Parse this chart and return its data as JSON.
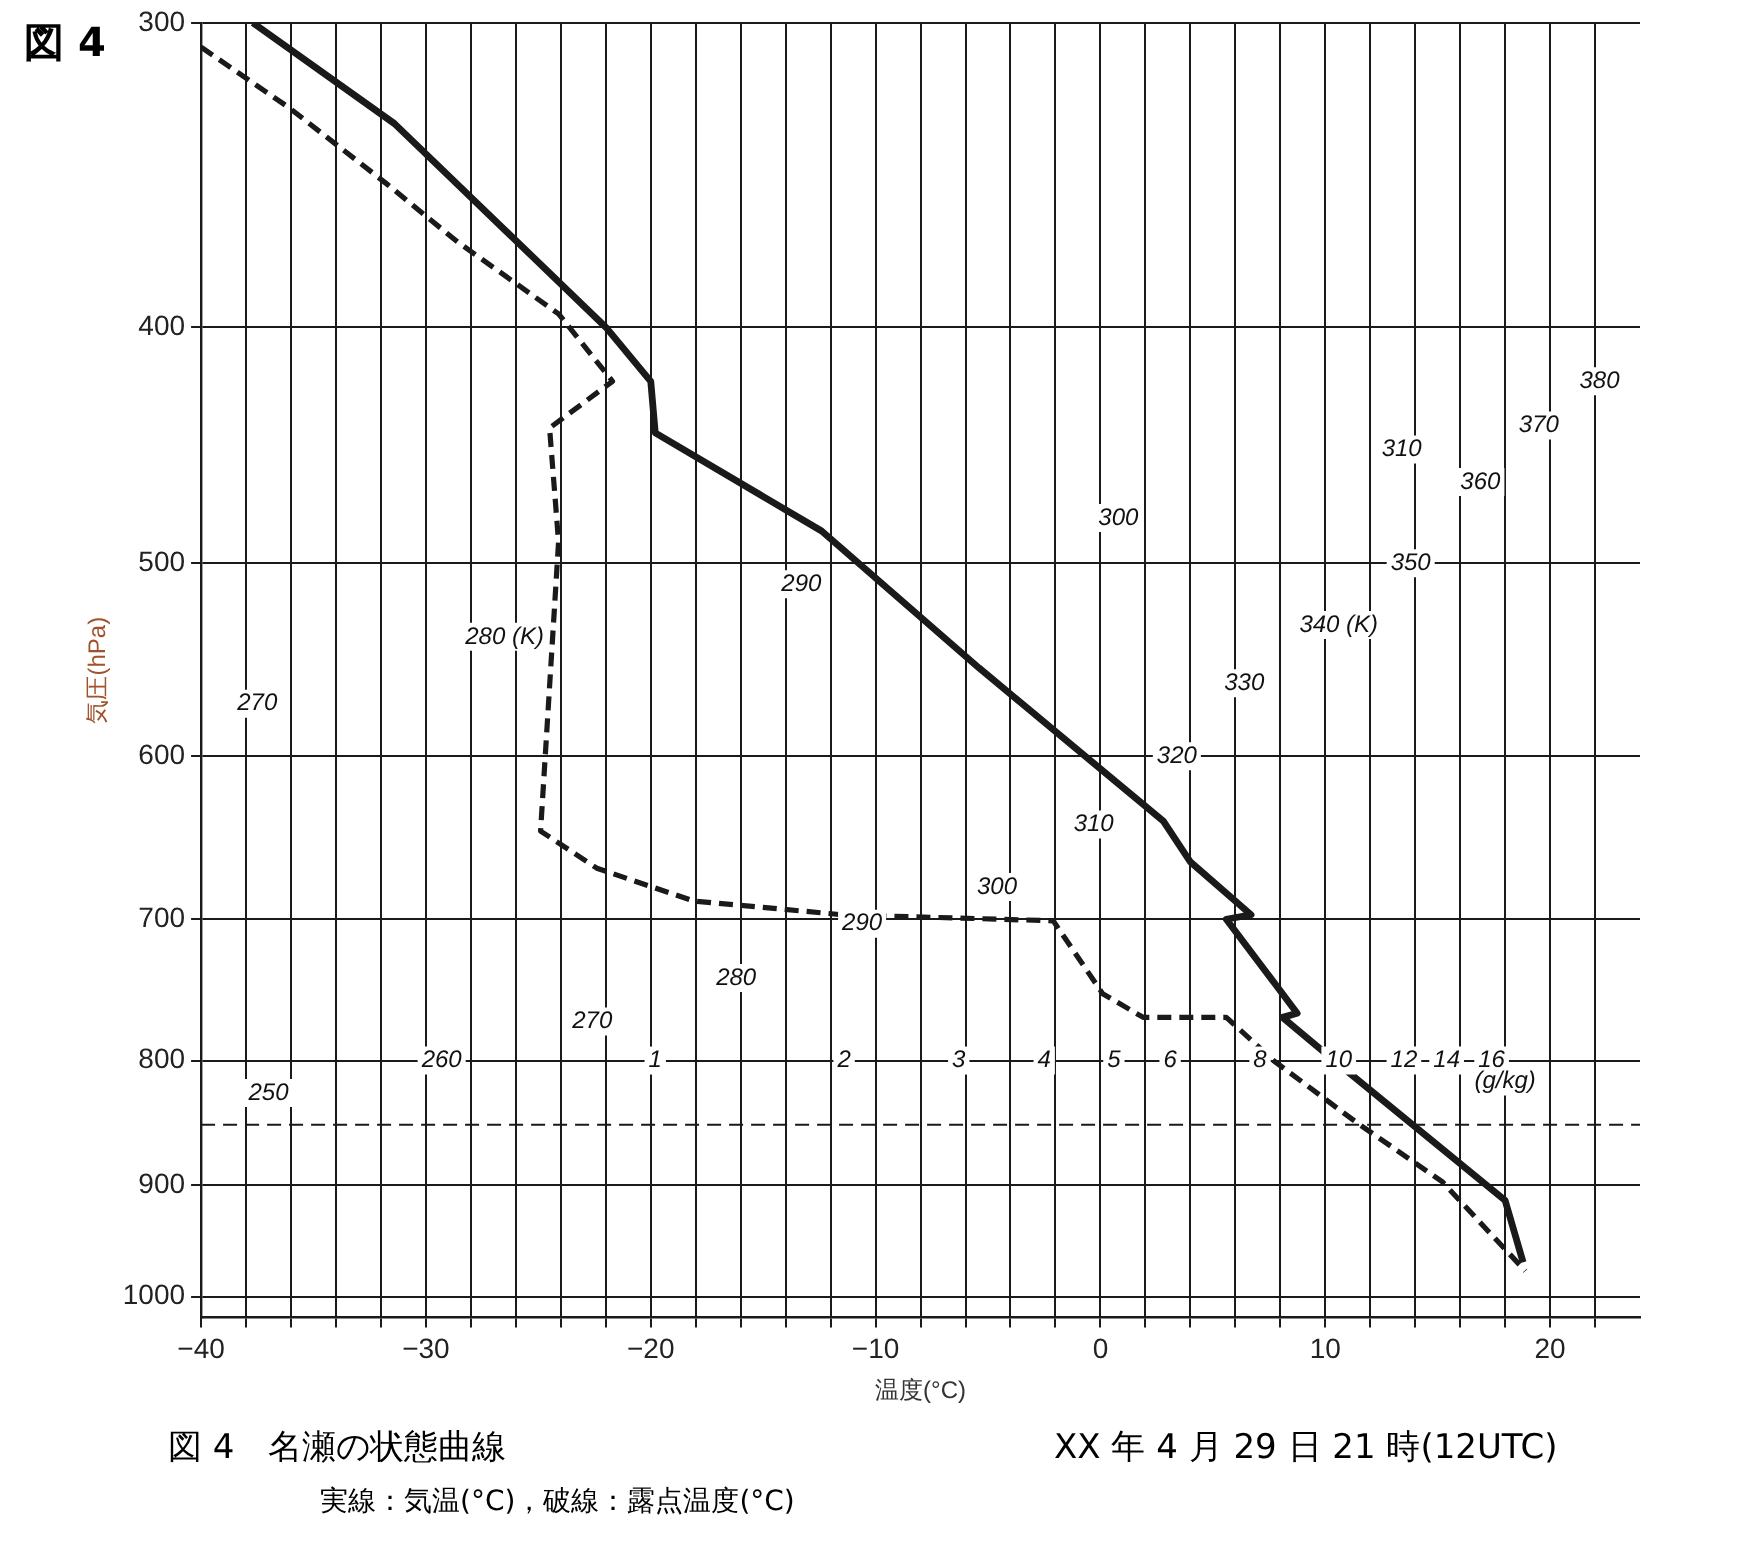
{
  "chart_data": {
    "type": "line",
    "title": "図 4",
    "xlabel": "温度(°C)",
    "ylabel": "気圧(hPa)",
    "xlim": [
      -40,
      24
    ],
    "xticks": [
      -40,
      {
        "value": -38,
        "label": null
      },
      {
        "value": -36,
        "label": null
      },
      {
        "value": -34,
        "label": null
      },
      {
        "value": -32,
        "label": null
      },
      -30,
      {
        "value": -28,
        "label": null
      },
      {
        "value": -26,
        "label": null
      },
      {
        "value": -24,
        "label": null
      },
      {
        "value": -22,
        "label": null
      },
      -20,
      {
        "value": -18,
        "label": null
      },
      {
        "value": -16,
        "label": null
      },
      {
        "value": -14,
        "label": null
      },
      {
        "value": -12,
        "label": null
      },
      -10,
      {
        "value": -8,
        "label": null
      },
      {
        "value": -6,
        "label": null
      },
      {
        "value": -4,
        "label": null
      },
      {
        "value": -2,
        "label": null
      },
      0,
      {
        "value": 2,
        "label": null
      },
      {
        "value": 4,
        "label": null
      },
      {
        "value": 6,
        "label": null
      },
      {
        "value": 8,
        "label": null
      },
      10,
      {
        "value": 12,
        "label": null
      },
      {
        "value": 14,
        "label": null
      },
      {
        "value": 16,
        "label": null
      },
      {
        "value": 18,
        "label": null
      },
      20,
      {
        "value": 22,
        "label": null
      }
    ],
    "ylim": [
      1020,
      300
    ],
    "yticks": [
      300,
      400,
      500,
      600,
      700,
      800,
      900,
      1000
    ],
    "log": "y",
    "grid": true,
    "legend": false,
    "marker": "none",
    "series": [
      {
        "color": "#1a1a1a",
        "line_style": "solid",
        "x": [
          -37.7,
          -31.4,
          -22.0,
          -20.0,
          -19.8,
          -12.4,
          -5.4,
          2.8,
          4.0,
          6.7,
          5.6,
          8.75,
          8.1,
          10.4,
          18.0,
          18.8
        ],
        "values": [
          300,
          330,
          400,
          421,
          442,
          485,
          552,
          638,
          663,
          697,
          700,
          765,
          768,
          800,
          913,
          968
        ]
      },
      {
        "color": "#1a1a1a",
        "line_style": "dashed",
        "x": [
          -40,
          -36.1,
          -31.8,
          -28.6,
          -24.1,
          -21.7,
          -24.5,
          -24.1,
          -24.9,
          -22.4,
          -18.1,
          -11.5,
          -2.1,
          0.1,
          1.9,
          5.6,
          7.7,
          11.3,
          15.2,
          18.9
        ],
        "values": [
          307,
          325,
          349,
          369,
          395,
          421,
          440,
          490,
          644,
          667,
          688,
          697,
          701,
          751,
          768,
          768,
          800,
          847,
          897,
          976
        ]
      }
    ],
    "ref_lines": [
      {
        "axis": "y",
        "value": 850,
        "line_style": "dashed",
        "color": "#1a1a1a"
      }
    ],
    "annotations": [
      {
        "text": "250",
        "x": -37.0,
        "y": 825
      },
      {
        "text": "260",
        "x": -29.3,
        "y": 800
      },
      {
        "text": "270",
        "x": -22.6,
        "y": 771
      },
      {
        "text": "280",
        "x": -16.2,
        "y": 740
      },
      {
        "text": "290",
        "x": -10.6,
        "y": 703
      },
      {
        "text": "300",
        "x": -4.6,
        "y": 679
      },
      {
        "text": "310",
        "x": -0.3,
        "y": 640
      },
      {
        "text": "320",
        "x": 3.4,
        "y": 600
      },
      {
        "text": "330",
        "x": 6.4,
        "y": 560
      },
      {
        "text": "340 (K)",
        "x": 10.6,
        "y": 530
      },
      {
        "text": "350",
        "x": 13.8,
        "y": 500
      },
      {
        "text": "360",
        "x": 16.9,
        "y": 463
      },
      {
        "text": "370",
        "x": 19.5,
        "y": 439
      },
      {
        "text": "380",
        "x": 22.2,
        "y": 421
      },
      {
        "text": "270",
        "x": -37.5,
        "y": 571
      },
      {
        "text": "280 (K)",
        "x": -26.5,
        "y": 536
      },
      {
        "text": "290",
        "x": -13.3,
        "y": 510
      },
      {
        "text": "300",
        "x": 0.8,
        "y": 479
      },
      {
        "text": "310",
        "x": 13.4,
        "y": 449
      },
      {
        "text": "1",
        "x": -19.8,
        "y": 800
      },
      {
        "text": "2",
        "x": -11.4,
        "y": 800
      },
      {
        "text": "3",
        "x": -6.3,
        "y": 800
      },
      {
        "text": "4",
        "x": -2.5,
        "y": 800
      },
      {
        "text": "5",
        "x": 0.6,
        "y": 800
      },
      {
        "text": "6",
        "x": 3.1,
        "y": 800
      },
      {
        "text": "8",
        "x": 7.1,
        "y": 800
      },
      {
        "text": "10",
        "x": 10.6,
        "y": 800
      },
      {
        "text": "12",
        "x": 13.5,
        "y": 800
      },
      {
        "text": "14",
        "x": 15.4,
        "y": 800
      },
      {
        "text": "16",
        "x": 17.4,
        "y": 800
      },
      {
        "text": "(g/kg)",
        "x": 18.0,
        "y": 816
      },
      "図 4　名瀬の状態曲線",
      "XX 年 4 月 29 日 21 時(12UTC)",
      "実線：気温(°C)，破線：露点温度(°C)"
    ]
  }
}
